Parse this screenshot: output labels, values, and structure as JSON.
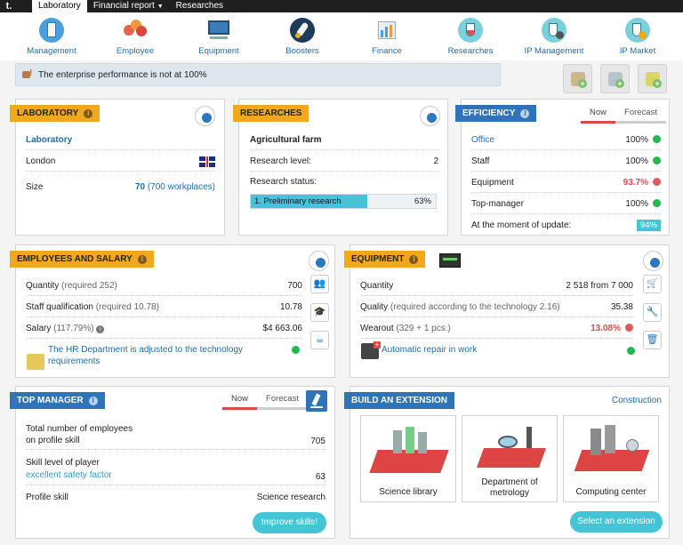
{
  "topbar": {
    "logo": "t.",
    "tabs": [
      {
        "label": "Laboratory"
      },
      {
        "label": "Financial report"
      },
      {
        "label": "Researches"
      }
    ]
  },
  "nav": {
    "items": [
      {
        "label": "Management",
        "icon": "building-icon"
      },
      {
        "label": "Employee",
        "icon": "people-icon"
      },
      {
        "label": "Equipment",
        "icon": "computer-icon"
      },
      {
        "label": "Boosters",
        "icon": "rocket-icon"
      },
      {
        "label": "Finance",
        "icon": "chart-icon"
      },
      {
        "label": "Researches",
        "icon": "flask-icon"
      },
      {
        "label": "IP Management",
        "icon": "flask-gear-icon"
      },
      {
        "label": "IP Market",
        "icon": "flask-plus-icon"
      }
    ]
  },
  "alert": {
    "text": "The enterprise performance is not at 100%"
  },
  "laboratory": {
    "title": "LABORATORY",
    "name": "Laboratory",
    "city": "London",
    "size_label": "Size",
    "size_value": "70",
    "size_note": "(700 workplaces)"
  },
  "researches": {
    "title": "RESEARCHES",
    "farm": "Agricultural farm",
    "level_label": "Research level:",
    "level_value": "2",
    "status_label": "Research status:",
    "progress_label": "1. Preliminary research",
    "progress_value": "63%",
    "progress_fraction": 0.63
  },
  "efficiency": {
    "title": "EFFICIENCY",
    "toggle_now": "Now",
    "toggle_forecast": "Forecast",
    "rows": [
      {
        "label": "Office",
        "value": "100%",
        "status": "green"
      },
      {
        "label": "Staff",
        "value": "100%",
        "status": "green"
      },
      {
        "label": "Equipment",
        "value": "93.7%",
        "status": "red"
      },
      {
        "label": "Top-manager",
        "value": "100%",
        "status": "green"
      }
    ],
    "update_label": "At the moment of update:",
    "update_value": "94%"
  },
  "employees": {
    "title": "EMPLOYEES AND SALARY",
    "quantity_label": "Quantity",
    "quantity_note": "(required 252)",
    "quantity_value": "700",
    "qual_label": "Staff qualification",
    "qual_note": "(required 10.78)",
    "qual_value": "10.78",
    "salary_label": "Salary",
    "salary_note": "(117.79%)",
    "salary_value": "$4 663.06",
    "hr_text": "The HR Department is adjusted to the technology requirements"
  },
  "equipment": {
    "title": "EQUIPMENT",
    "quantity_label": "Quantity",
    "quantity_value": "2 518 from 7 000",
    "quality_label": "Quality",
    "quality_note": "(required according to the technology 2.16)",
    "quality_value": "35.38",
    "wearout_label": "Wearout",
    "wearout_note": "(329 + 1 pcs.)",
    "wearout_value": "13.08%",
    "repair_text": "Automatic repair in work"
  },
  "top_manager": {
    "title": "TOP MANAGER",
    "toggle_now": "Now",
    "toggle_forecast": "Forecast",
    "employees_label_1": "Total number of employees",
    "employees_label_2": "on profile skill",
    "employees_value": "705",
    "skill_label": "Skill level of player",
    "skill_link": "excellent safety factor",
    "skill_value": "63",
    "profile_label": "Profile skill",
    "profile_value": "Science research",
    "improve_button": "Improve skills!"
  },
  "extension": {
    "title": "BUILD AN EXTENSION",
    "construction_link": "Construction",
    "cards": [
      {
        "label": "Science library"
      },
      {
        "label": "Department of metrology"
      },
      {
        "label": "Computing center"
      }
    ],
    "select_button": "Select an extension"
  }
}
